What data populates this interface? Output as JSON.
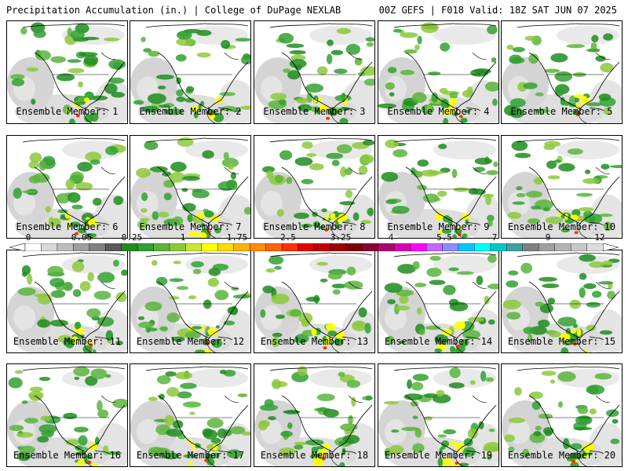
{
  "header": {
    "left": "Precipitation Accumulation (in.) | College of DuPage NEXLAB",
    "right": "00Z GEFS | F018 Valid: 18Z SAT JUN 07 2025"
  },
  "members": [
    "Ensemble Member: 1",
    "Ensemble Member: 2",
    "Ensemble Member: 3",
    "Ensemble Member: 4",
    "Ensemble Member: 5",
    "Ensemble Member: 6",
    "Ensemble Member: 7",
    "Ensemble Member: 8",
    "Ensemble Member: 9",
    "Ensemble Member: 10",
    "Ensemble Member: 11",
    "Ensemble Member: 12",
    "Ensemble Member: 13",
    "Ensemble Member: 14",
    "Ensemble Member: 15",
    "Ensemble Member: 16",
    "Ensemble Member: 17",
    "Ensemble Member: 18",
    "Ensemble Member: 19",
    "Ensemble Member: 20"
  ],
  "colorbar": {
    "tick_labels": [
      "0",
      "0.05",
      "0.25",
      "1",
      "1.75",
      "2.5",
      "3.25",
      "4",
      "5.5",
      "7",
      "9",
      "12"
    ],
    "colors": [
      "#ffffff",
      "#d9d9d9",
      "#bdbdbd",
      "#9e9e9e",
      "#808080",
      "#5a5a5a",
      "#1e8c1e",
      "#32a032",
      "#5ab43c",
      "#8cc83c",
      "#c8e632",
      "#ffff00",
      "#ffdc00",
      "#ffb400",
      "#ff8c00",
      "#ff6400",
      "#ff3200",
      "#e60000",
      "#c80000",
      "#a00000",
      "#820000",
      "#8c0032",
      "#b4006e",
      "#dc00b4",
      "#ff00ff",
      "#c864ff",
      "#8c8cff",
      "#00c8ff",
      "#00ffff",
      "#00c8c8",
      "#40a0a0",
      "#808080",
      "#a0a0a0",
      "#b4b4b4",
      "#c8c8c8",
      "#dcdcdc"
    ]
  }
}
